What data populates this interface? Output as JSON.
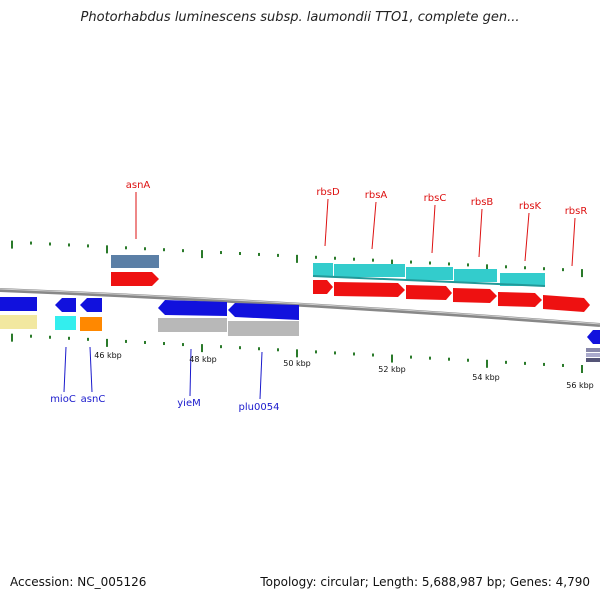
{
  "title": "Photorhabdus luminescens subsp. laumondii TTO1, complete gen...",
  "footer": {
    "accession": "Accession: NC_005126",
    "summary": "Topology: circular; Length: 5,688,987 bp; Genes: 4,790"
  },
  "colors": {
    "backbone": "#888888",
    "tick": "#2a7a2a",
    "forward_label": "#dd1111",
    "reverse_label": "#1a1acc",
    "ruler_label": "#111111",
    "cds_forward": "#ee1111",
    "cds_reverse": "#1111dd",
    "gene_blue": "#5b7fa6",
    "cyan": "#33cccc",
    "cyan_dark": "#229999",
    "yellow": "#f2e8a0",
    "orange": "#ff8800",
    "grey": "#b8b8b8"
  },
  "scale_labels": [
    "46 kbp",
    "48 kbp",
    "50 kbp",
    "52 kbp",
    "54 kbp",
    "56 kbp"
  ],
  "forward_gene_labels": [
    "asnA",
    "rbsD",
    "rbsA",
    "rbsC",
    "rbsB",
    "rbsK",
    "rbsR"
  ],
  "reverse_gene_labels": [
    "mioC",
    "asnC",
    "yieM",
    "plu0054"
  ]
}
